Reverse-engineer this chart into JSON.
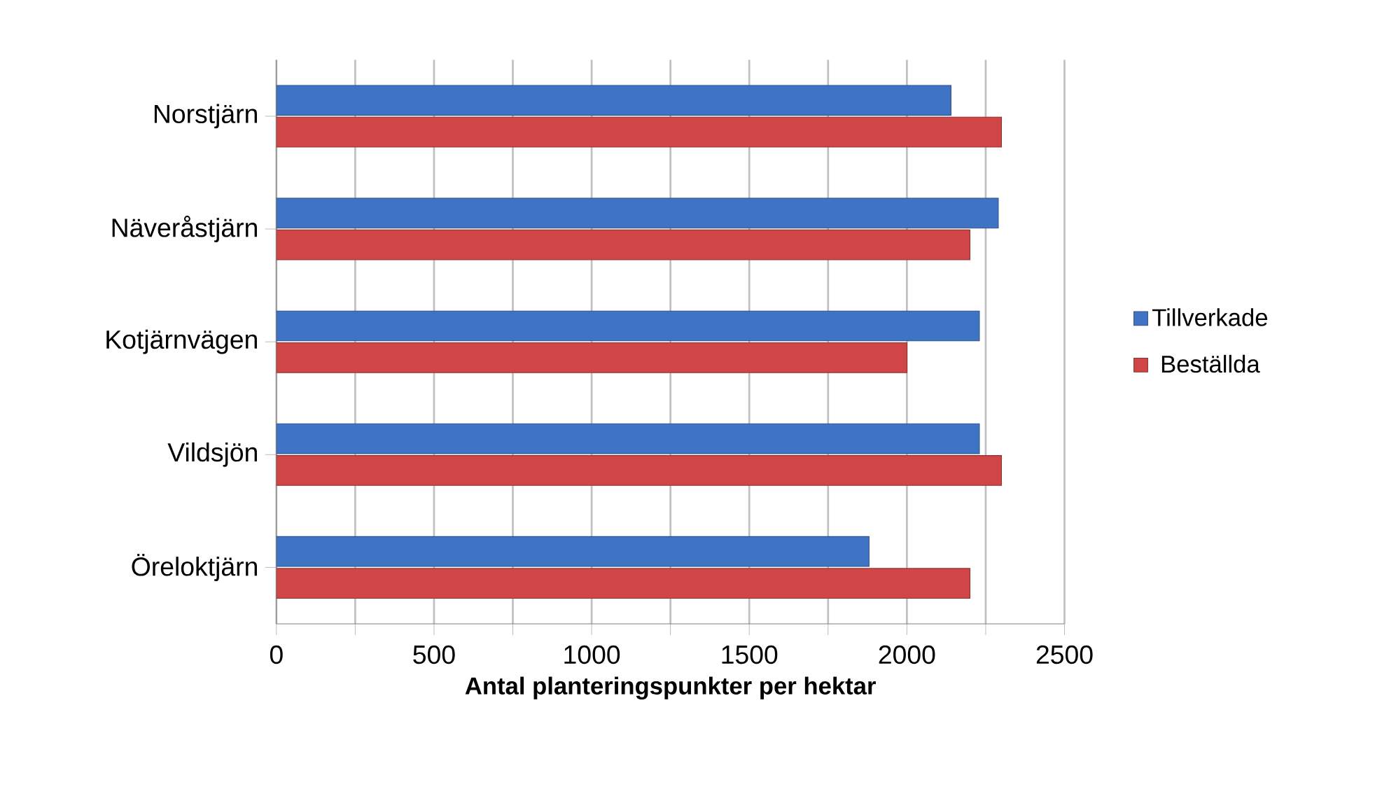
{
  "chart_data": {
    "type": "bar",
    "orientation": "horizontal",
    "xlabel": "Antal planteringspunkter per hektar",
    "categories": [
      "Norstjärn",
      "Näveråstjärn",
      "Kotjärnvägen",
      "Vildsjön",
      "Öreloktjärn"
    ],
    "series": [
      {
        "name": "Tillverkade",
        "color": "#3f74c4",
        "values": [
          2140,
          2290,
          2230,
          2230,
          1880
        ]
      },
      {
        "name": "Beställda",
        "color": "#d04545",
        "values": [
          2300,
          2200,
          2000,
          2300,
          2200
        ]
      }
    ],
    "xlim": [
      0,
      2500
    ],
    "xticks": [
      0,
      {
        "value": 250,
        "label": null
      },
      500,
      {
        "value": 750,
        "label": null
      },
      1000,
      {
        "value": 1250,
        "label": null
      },
      1500,
      {
        "value": 1750,
        "label": null
      },
      2000,
      {
        "value": 2250,
        "label": null
      },
      2500
    ],
    "grid": "x",
    "legend": "right"
  }
}
